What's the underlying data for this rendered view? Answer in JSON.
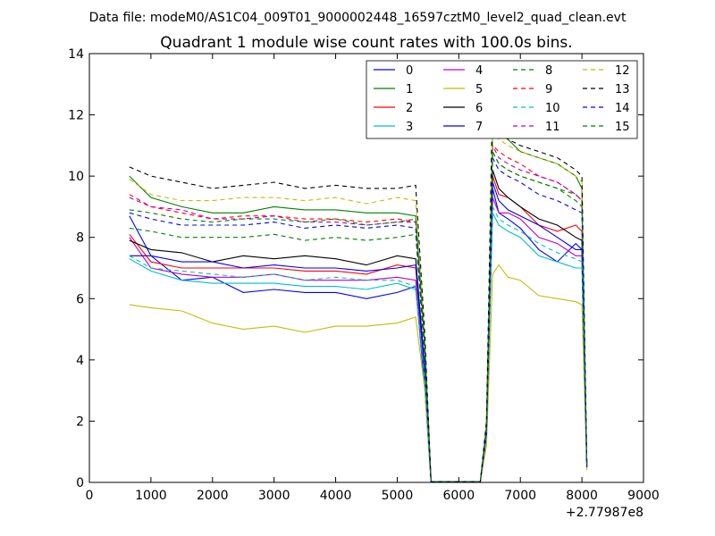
{
  "chart_data": {
    "type": "line",
    "suptitle": "Data file: modeM0/AS1C04_009T01_9000002448_16597cztM0_level2_quad_clean.evt",
    "title": "Quadrant 1 module wise count rates with 100.0s bins.",
    "xlabel": "",
    "ylabel": "",
    "x_offset_label": "+2.77987e8",
    "xlim": [
      0,
      9000
    ],
    "ylim": [
      0,
      14
    ],
    "xticks": [
      0,
      1000,
      2000,
      3000,
      4000,
      5000,
      6000,
      7000,
      8000,
      9000
    ],
    "xtick_labels": [
      "0",
      "1000",
      "2000",
      "3000",
      "4000",
      "5000",
      "6000",
      "7000",
      "8000",
      "9000"
    ],
    "yticks": [
      0,
      2,
      4,
      6,
      8,
      10,
      12,
      14
    ],
    "ytick_labels": [
      "0",
      "2",
      "4",
      "6",
      "8",
      "10",
      "12",
      "14"
    ],
    "grid": false,
    "legend_position": "top-right",
    "legend_columns": 4,
    "series": [
      {
        "name": "0",
        "color": "#0000ff",
        "style": "solid",
        "x": [
          650,
          1000,
          1500,
          2000,
          2500,
          3000,
          3500,
          4000,
          4500,
          5000,
          5300,
          5450,
          5550,
          6350,
          6450,
          6550,
          6650,
          6800,
          7000,
          7300,
          7600,
          7900,
          8000,
          8080
        ],
        "y": [
          8.7,
          7.4,
          6.6,
          6.7,
          6.2,
          6.3,
          6.2,
          6.2,
          6.0,
          6.2,
          6.4,
          3.0,
          0.02,
          0.02,
          1.5,
          9.6,
          8.8,
          8.6,
          8.3,
          7.6,
          7.2,
          7.8,
          7.6,
          0.5
        ]
      },
      {
        "name": "1",
        "color": "#008000",
        "style": "solid",
        "x": [
          650,
          1000,
          1500,
          2000,
          2500,
          3000,
          3500,
          4000,
          4500,
          5000,
          5300,
          5450,
          5550,
          6350,
          6450,
          6550,
          6650,
          6800,
          7000,
          7300,
          7600,
          7900,
          8000,
          8080
        ],
        "y": [
          10.0,
          9.3,
          9.0,
          8.8,
          8.8,
          9.0,
          8.9,
          8.9,
          8.8,
          8.8,
          8.7,
          4.5,
          0.02,
          0.02,
          1.8,
          11.4,
          11.4,
          11.2,
          10.8,
          10.6,
          10.4,
          10.0,
          9.6,
          0.6
        ]
      },
      {
        "name": "2",
        "color": "#ff0000",
        "style": "solid",
        "x": [
          650,
          1000,
          1500,
          2000,
          2500,
          3000,
          3500,
          4000,
          4500,
          5000,
          5300,
          5450,
          5550,
          6350,
          6450,
          6550,
          6650,
          6800,
          7000,
          7300,
          7600,
          7900,
          8000,
          8080
        ],
        "y": [
          8.1,
          7.2,
          7.0,
          7.0,
          7.0,
          7.0,
          6.9,
          6.9,
          6.8,
          7.1,
          7.0,
          3.6,
          0.02,
          0.02,
          1.6,
          10.0,
          9.4,
          9.3,
          9.0,
          8.4,
          8.2,
          8.4,
          8.2,
          0.5
        ]
      },
      {
        "name": "3",
        "color": "#00bfbf",
        "style": "solid",
        "x": [
          650,
          1000,
          1500,
          2000,
          2500,
          3000,
          3500,
          4000,
          4500,
          5000,
          5300,
          5450,
          5550,
          6350,
          6450,
          6550,
          6650,
          6800,
          7000,
          7300,
          7600,
          7900,
          8000,
          8080
        ],
        "y": [
          7.3,
          6.9,
          6.6,
          6.5,
          6.5,
          6.5,
          6.4,
          6.4,
          6.3,
          6.5,
          6.3,
          3.3,
          0.02,
          0.02,
          1.5,
          8.8,
          8.4,
          8.2,
          8.0,
          7.4,
          7.2,
          7.0,
          7.0,
          0.5
        ]
      },
      {
        "name": "4",
        "color": "#bf00bf",
        "style": "solid",
        "x": [
          650,
          1000,
          1500,
          2000,
          2500,
          3000,
          3500,
          4000,
          4500,
          5000,
          5300,
          5450,
          5550,
          6350,
          6450,
          6550,
          6650,
          6800,
          7000,
          7300,
          7600,
          7900,
          8000,
          8080
        ],
        "y": [
          8.0,
          7.0,
          6.8,
          6.7,
          6.7,
          6.8,
          6.6,
          6.6,
          6.6,
          6.7,
          6.6,
          3.4,
          0.02,
          0.02,
          1.5,
          9.3,
          8.8,
          8.8,
          8.6,
          8.0,
          7.8,
          7.4,
          7.4,
          0.5
        ]
      },
      {
        "name": "5",
        "color": "#bfbf00",
        "style": "solid",
        "x": [
          650,
          1000,
          1500,
          2000,
          2500,
          3000,
          3500,
          4000,
          4500,
          5000,
          5300,
          5450,
          5550,
          6350,
          6450,
          6550,
          6650,
          6800,
          7000,
          7300,
          7600,
          7900,
          8000,
          8080
        ],
        "y": [
          5.8,
          5.7,
          5.6,
          5.2,
          5.0,
          5.1,
          4.9,
          5.1,
          5.1,
          5.2,
          5.4,
          3.0,
          0.02,
          0.02,
          1.2,
          6.8,
          7.1,
          6.7,
          6.6,
          6.1,
          6.0,
          5.9,
          5.8,
          0.4
        ]
      },
      {
        "name": "6",
        "color": "#000000",
        "style": "solid",
        "x": [
          650,
          1000,
          1500,
          2000,
          2500,
          3000,
          3500,
          4000,
          4500,
          5000,
          5300,
          5450,
          5550,
          6350,
          6450,
          6550,
          6650,
          6800,
          7000,
          7300,
          7600,
          7900,
          8000,
          8080
        ],
        "y": [
          7.9,
          7.6,
          7.5,
          7.2,
          7.4,
          7.3,
          7.4,
          7.3,
          7.1,
          7.4,
          7.3,
          3.7,
          0.02,
          0.02,
          1.6,
          10.2,
          9.6,
          9.3,
          9.0,
          8.6,
          8.4,
          8.0,
          7.9,
          0.5
        ]
      },
      {
        "name": "7",
        "color": "#0000ff",
        "style": "solid",
        "x": [
          650,
          1000,
          1500,
          2000,
          2500,
          3000,
          3500,
          4000,
          4500,
          5000,
          5300,
          5450,
          5550,
          6350,
          6450,
          6550,
          6650,
          6800,
          7000,
          7300,
          7600,
          7900,
          8000,
          8080
        ],
        "y": [
          7.4,
          7.4,
          7.2,
          7.2,
          7.0,
          7.1,
          7.0,
          7.0,
          6.9,
          7.0,
          7.1,
          3.6,
          0.02,
          0.02,
          1.6,
          9.8,
          9.2,
          8.9,
          8.7,
          8.4,
          8.0,
          7.6,
          7.6,
          0.5
        ]
      },
      {
        "name": "8",
        "color": "#008000",
        "style": "dashed",
        "x": [
          650,
          1000,
          1500,
          2000,
          2500,
          3000,
          3500,
          4000,
          4500,
          5000,
          5300,
          5450,
          5550,
          6350,
          6450,
          6550,
          6650,
          6800,
          7000,
          7300,
          7600,
          7900,
          8000,
          8080
        ],
        "y": [
          8.3,
          8.2,
          8.0,
          8.0,
          8.0,
          8.1,
          7.9,
          8.0,
          7.9,
          8.0,
          8.1,
          4.0,
          0.02,
          0.02,
          1.7,
          10.8,
          10.4,
          10.2,
          10.0,
          9.8,
          9.6,
          9.4,
          9.2,
          0.6
        ]
      },
      {
        "name": "9",
        "color": "#ff0000",
        "style": "dashed",
        "x": [
          650,
          1000,
          1500,
          2000,
          2500,
          3000,
          3500,
          4000,
          4500,
          5000,
          5300,
          5450,
          5550,
          6350,
          6450,
          6550,
          6650,
          6800,
          7000,
          7300,
          7600,
          7900,
          8000,
          8080
        ],
        "y": [
          9.4,
          9.0,
          8.8,
          8.6,
          8.7,
          8.7,
          8.6,
          8.6,
          8.5,
          8.6,
          8.5,
          4.3,
          0.02,
          0.02,
          1.8,
          11.0,
          10.8,
          10.6,
          10.4,
          10.0,
          9.8,
          9.4,
          9.2,
          0.6
        ]
      },
      {
        "name": "10",
        "color": "#00bfbf",
        "style": "dashed",
        "x": [
          650,
          1000,
          1500,
          2000,
          2500,
          3000,
          3500,
          4000,
          4500,
          5000,
          5300,
          5450,
          5550,
          6350,
          6450,
          6550,
          6650,
          6800,
          7000,
          7300,
          7600,
          7900,
          8000,
          8080
        ],
        "y": [
          7.4,
          7.0,
          6.9,
          6.8,
          6.7,
          6.8,
          6.6,
          6.7,
          6.6,
          6.6,
          6.4,
          3.3,
          0.02,
          0.02,
          1.5,
          9.0,
          8.6,
          8.4,
          8.2,
          7.8,
          7.5,
          7.3,
          7.2,
          0.5
        ]
      },
      {
        "name": "11",
        "color": "#bf00bf",
        "style": "dashed",
        "x": [
          650,
          1000,
          1500,
          2000,
          2500,
          3000,
          3500,
          4000,
          4500,
          5000,
          5300,
          5450,
          5550,
          6350,
          6450,
          6550,
          6650,
          6800,
          7000,
          7300,
          7600,
          7900,
          8000,
          8080
        ],
        "y": [
          9.3,
          9.0,
          8.9,
          8.6,
          8.6,
          8.7,
          8.5,
          8.5,
          8.4,
          8.5,
          8.5,
          4.3,
          0.02,
          0.02,
          1.8,
          11.0,
          10.6,
          10.4,
          10.2,
          10.0,
          9.8,
          9.4,
          9.2,
          0.6
        ]
      },
      {
        "name": "12",
        "color": "#bfbf00",
        "style": "dashed",
        "x": [
          650,
          1000,
          1500,
          2000,
          2500,
          3000,
          3500,
          4000,
          4500,
          5000,
          5300,
          5450,
          5550,
          6350,
          6450,
          6550,
          6650,
          6800,
          7000,
          7300,
          7600,
          7900,
          8000,
          8080
        ],
        "y": [
          9.9,
          9.4,
          9.2,
          9.2,
          9.3,
          9.3,
          9.2,
          9.3,
          9.1,
          9.3,
          9.2,
          4.6,
          0.02,
          0.02,
          1.9,
          11.6,
          11.2,
          11.0,
          10.8,
          10.6,
          10.4,
          10.0,
          9.8,
          0.6
        ]
      },
      {
        "name": "13",
        "color": "#000000",
        "style": "dashed",
        "x": [
          650,
          1000,
          1500,
          2000,
          2500,
          3000,
          3500,
          4000,
          4500,
          5000,
          5300,
          5450,
          5550,
          6350,
          6450,
          6550,
          6650,
          6800,
          7000,
          7300,
          7600,
          7900,
          8000,
          8080
        ],
        "y": [
          10.3,
          10.0,
          9.8,
          9.6,
          9.7,
          9.8,
          9.6,
          9.7,
          9.6,
          9.6,
          9.7,
          4.8,
          0.02,
          0.02,
          2.0,
          12.8,
          11.6,
          11.2,
          11.0,
          10.8,
          10.6,
          10.2,
          10.0,
          0.6
        ]
      },
      {
        "name": "14",
        "color": "#0000ff",
        "style": "dashed",
        "x": [
          650,
          1000,
          1500,
          2000,
          2500,
          3000,
          3500,
          4000,
          4500,
          5000,
          5300,
          5450,
          5550,
          6350,
          6450,
          6550,
          6650,
          6800,
          7000,
          7300,
          7600,
          7900,
          8000,
          8080
        ],
        "y": [
          8.8,
          8.6,
          8.4,
          8.4,
          8.4,
          8.5,
          8.3,
          8.4,
          8.3,
          8.4,
          8.3,
          4.2,
          0.02,
          0.02,
          1.7,
          10.6,
          10.2,
          10.0,
          9.8,
          9.4,
          9.2,
          8.9,
          8.8,
          0.6
        ]
      },
      {
        "name": "15",
        "color": "#008000",
        "style": "dashed",
        "x": [
          650,
          1000,
          1500,
          2000,
          2500,
          3000,
          3500,
          4000,
          4500,
          5000,
          5300,
          5450,
          5550,
          6350,
          6450,
          6550,
          6650,
          6800,
          7000,
          7300,
          7600,
          7900,
          8000,
          8080
        ],
        "y": [
          8.9,
          8.8,
          8.6,
          8.5,
          8.6,
          8.6,
          8.5,
          8.6,
          8.4,
          8.5,
          8.6,
          4.3,
          0.02,
          0.02,
          1.8,
          10.8,
          10.4,
          10.2,
          10.0,
          9.8,
          9.6,
          9.2,
          9.0,
          0.6
        ]
      }
    ]
  }
}
